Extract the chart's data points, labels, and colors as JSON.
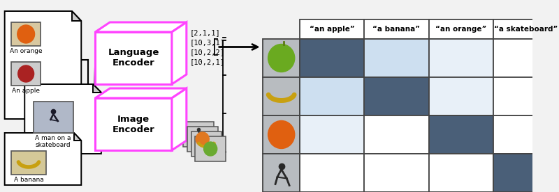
{
  "lang_encoder_label": "Language\nEncoder",
  "img_encoder_label": "Image\nEncoder",
  "vector_text": "[2,1,1]\n[10,3,1]\n[10,2,2]\n[10,2,1]",
  "col_labels": [
    "“an apple”",
    "“a banana”",
    "“an orange”",
    "“a skateboard”"
  ],
  "dark_blue": "#4a5f78",
  "light_blue": "#cddff0",
  "very_light_blue": "#e8f0f8",
  "white": "#ffffff",
  "grid_colors": [
    [
      "dark",
      "light",
      "very_light",
      "white"
    ],
    [
      "light",
      "dark",
      "very_light",
      "white"
    ],
    [
      "very_light",
      "white",
      "dark",
      "white"
    ],
    [
      "white",
      "white",
      "white",
      "dark"
    ]
  ],
  "pink": "#ff44ff",
  "fig_bg": "#f2f2f2"
}
